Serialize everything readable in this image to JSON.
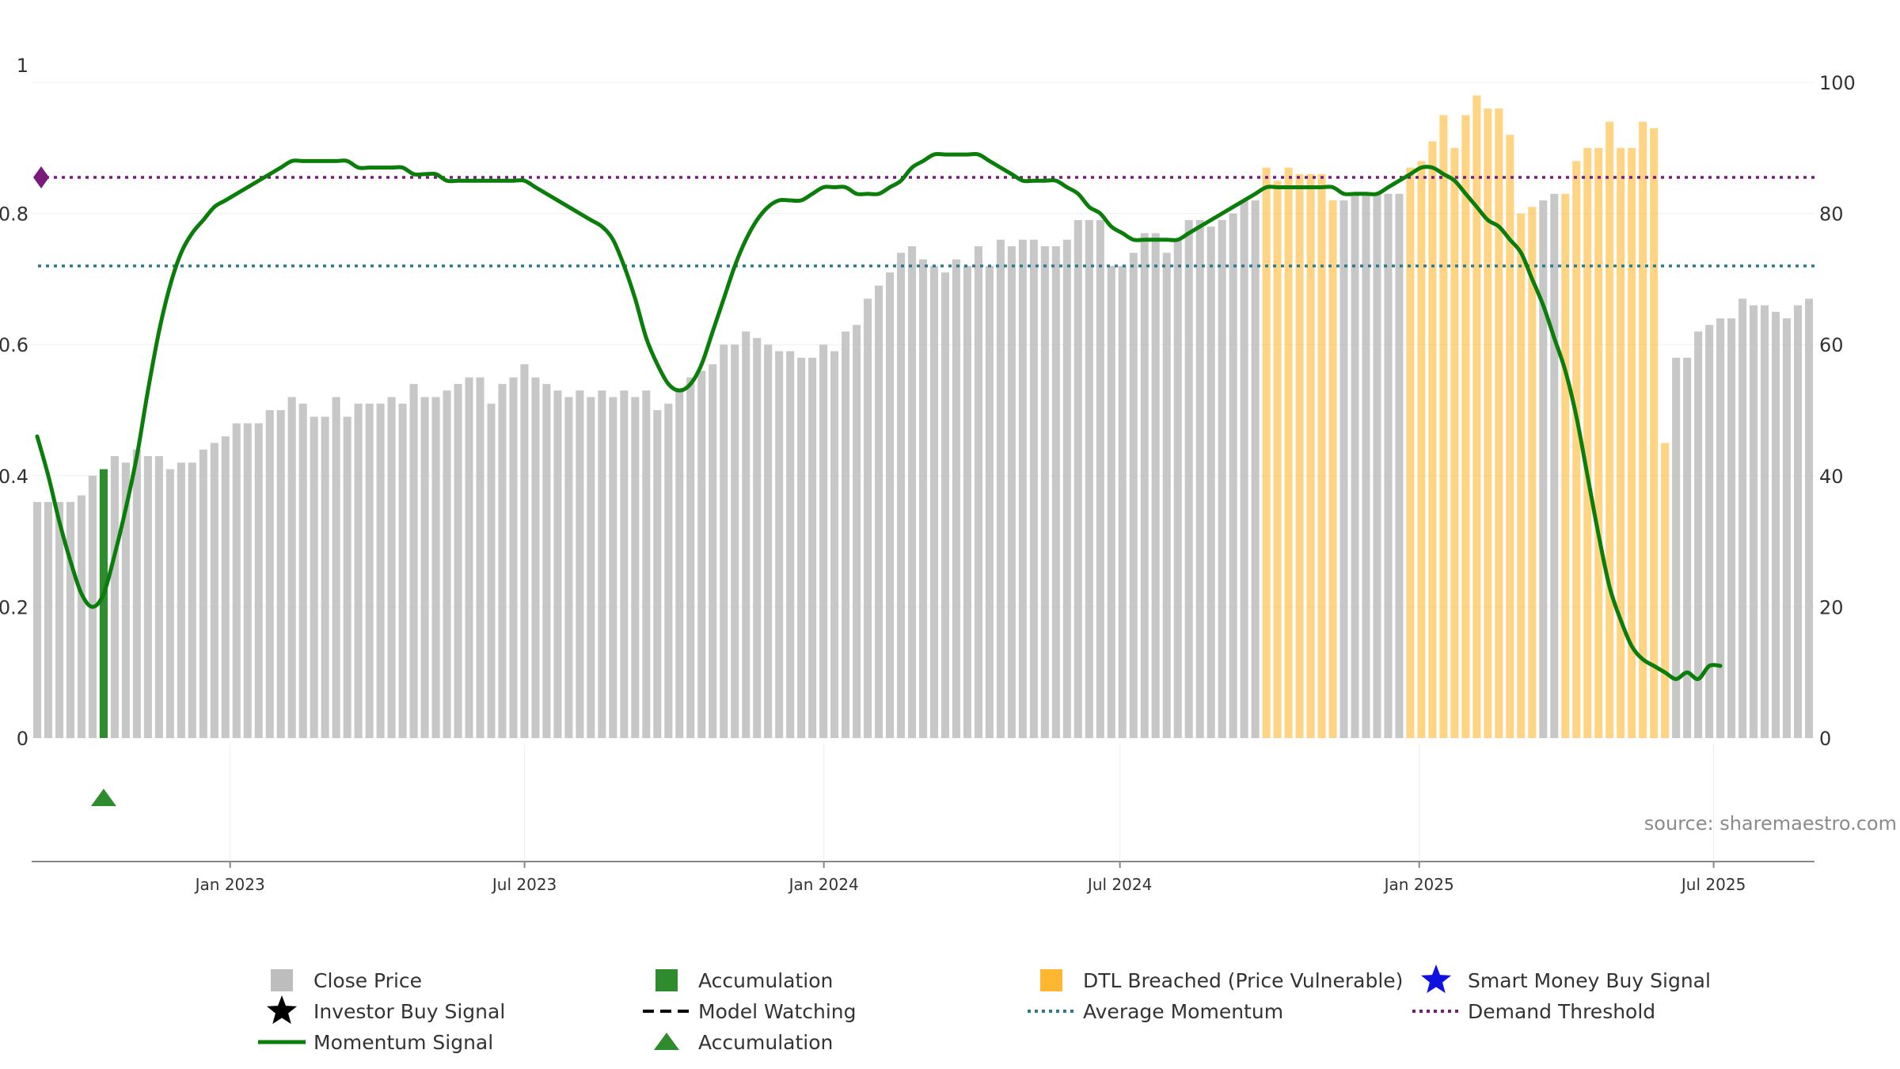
{
  "chart_data": {
    "type": "bar",
    "left_axis": {
      "ylim": [
        0,
        1
      ],
      "ticks": [
        "0",
        "0.2",
        "0.4",
        "0.6",
        "0.8",
        "1"
      ]
    },
    "right_axis": {
      "ylim": [
        0,
        100
      ],
      "ticks": [
        "0",
        "20",
        "40",
        "60",
        "80",
        "100"
      ]
    },
    "x_axis": {
      "start_month": [
        2022,
        9
      ],
      "end_month": [
        2025,
        9
      ],
      "ticks": [
        {
          "label": "Jan 2023",
          "date": "2023-01-01"
        },
        {
          "label": "Jul 2023",
          "date": "2023-07-01"
        },
        {
          "label": "Jan 2024",
          "date": "2024-01-01"
        },
        {
          "label": "Jul 2024",
          "date": "2024-07-01"
        },
        {
          "label": "Jan 2025",
          "date": "2025-01-01"
        },
        {
          "label": "Jul 2025",
          "date": "2025-07-01"
        }
      ]
    },
    "close_price": [
      36,
      36,
      36,
      36,
      37,
      40,
      41,
      43,
      42,
      44,
      43,
      43,
      41,
      42,
      42,
      44,
      45,
      46,
      48,
      48,
      48,
      50,
      50,
      52,
      51,
      49,
      49,
      52,
      49,
      51,
      51,
      51,
      52,
      51,
      54,
      52,
      52,
      53,
      54,
      55,
      55,
      51,
      54,
      55,
      57,
      55,
      54,
      53,
      52,
      53,
      52,
      53,
      52,
      53,
      52,
      53,
      50,
      51,
      53,
      55,
      56,
      57,
      60,
      60,
      62,
      61,
      60,
      59,
      59,
      58,
      58,
      60,
      59,
      62,
      63,
      67,
      69,
      71,
      74,
      75,
      73,
      72,
      71,
      73,
      72,
      75,
      72,
      76,
      75,
      76,
      76,
      75,
      75,
      76,
      79,
      79,
      79,
      72,
      72,
      74,
      77,
      77,
      74,
      76,
      79,
      79,
      78,
      79,
      80,
      82,
      82,
      87,
      85,
      87,
      86,
      86,
      86,
      82,
      82,
      83,
      83,
      83,
      83,
      83,
      87,
      88,
      91,
      95,
      90,
      95,
      98,
      96,
      96,
      92,
      80,
      81,
      82,
      83,
      83,
      88,
      90,
      90,
      94,
      90,
      90,
      94,
      93,
      45,
      58,
      58,
      62,
      63,
      64,
      64,
      67,
      66,
      66,
      65,
      64,
      66,
      67
    ],
    "accumulation_bar_index": 6,
    "accumulation_bar_value": 41,
    "dtl_breached_ranges": [
      [
        111,
        117
      ],
      [
        124,
        135
      ],
      [
        138,
        147
      ]
    ],
    "momentum_signal": [
      [
        0,
        46
      ],
      [
        1,
        40
      ],
      [
        2,
        33
      ],
      [
        3,
        27
      ],
      [
        4,
        22
      ],
      [
        5,
        20
      ],
      [
        6,
        22
      ],
      [
        7,
        28
      ],
      [
        8,
        35
      ],
      [
        9,
        43
      ],
      [
        10,
        53
      ],
      [
        11,
        62
      ],
      [
        12,
        69
      ],
      [
        13,
        74
      ],
      [
        14,
        77
      ],
      [
        15,
        79
      ],
      [
        16,
        81
      ],
      [
        17,
        82
      ],
      [
        18,
        83
      ],
      [
        19,
        84
      ],
      [
        20,
        85
      ],
      [
        21,
        86
      ],
      [
        22,
        87
      ],
      [
        23,
        88
      ],
      [
        24,
        88
      ],
      [
        25,
        88
      ],
      [
        26,
        88
      ],
      [
        27,
        88
      ],
      [
        28,
        88
      ],
      [
        29,
        87
      ],
      [
        30,
        87
      ],
      [
        31,
        87
      ],
      [
        32,
        87
      ],
      [
        33,
        87
      ],
      [
        34,
        86
      ],
      [
        35,
        86
      ],
      [
        36,
        86
      ],
      [
        37,
        85
      ],
      [
        38,
        85
      ],
      [
        39,
        85
      ],
      [
        40,
        85
      ],
      [
        41,
        85
      ],
      [
        42,
        85
      ],
      [
        43,
        85
      ],
      [
        44,
        85
      ],
      [
        45,
        84
      ],
      [
        46,
        83
      ],
      [
        47,
        82
      ],
      [
        48,
        81
      ],
      [
        49,
        80
      ],
      [
        50,
        79
      ],
      [
        51,
        78
      ],
      [
        52,
        76
      ],
      [
        53,
        72
      ],
      [
        54,
        67
      ],
      [
        55,
        61
      ],
      [
        56,
        57
      ],
      [
        57,
        54
      ],
      [
        58,
        53
      ],
      [
        59,
        54
      ],
      [
        60,
        57
      ],
      [
        61,
        62
      ],
      [
        62,
        67
      ],
      [
        63,
        72
      ],
      [
        64,
        76
      ],
      [
        65,
        79
      ],
      [
        66,
        81
      ],
      [
        67,
        82
      ],
      [
        68,
        82
      ],
      [
        69,
        82
      ],
      [
        70,
        83
      ],
      [
        71,
        84
      ],
      [
        72,
        84
      ],
      [
        73,
        84
      ],
      [
        74,
        83
      ],
      [
        75,
        83
      ],
      [
        76,
        83
      ],
      [
        77,
        84
      ],
      [
        78,
        85
      ],
      [
        79,
        87
      ],
      [
        80,
        88
      ],
      [
        81,
        89
      ],
      [
        82,
        89
      ],
      [
        83,
        89
      ],
      [
        84,
        89
      ],
      [
        85,
        89
      ],
      [
        86,
        88
      ],
      [
        87,
        87
      ],
      [
        88,
        86
      ],
      [
        89,
        85
      ],
      [
        90,
        85
      ],
      [
        91,
        85
      ],
      [
        92,
        85
      ],
      [
        93,
        84
      ],
      [
        94,
        83
      ],
      [
        95,
        81
      ],
      [
        96,
        80
      ],
      [
        97,
        78
      ],
      [
        98,
        77
      ],
      [
        99,
        76
      ],
      [
        100,
        76
      ],
      [
        101,
        76
      ],
      [
        102,
        76
      ],
      [
        103,
        76
      ],
      [
        104,
        77
      ],
      [
        105,
        78
      ],
      [
        106,
        79
      ],
      [
        107,
        80
      ],
      [
        108,
        81
      ],
      [
        109,
        82
      ],
      [
        110,
        83
      ],
      [
        111,
        84
      ],
      [
        112,
        84
      ],
      [
        113,
        84
      ],
      [
        114,
        84
      ],
      [
        115,
        84
      ],
      [
        116,
        84
      ],
      [
        117,
        84
      ],
      [
        118,
        83
      ],
      [
        119,
        83
      ],
      [
        120,
        83
      ],
      [
        121,
        83
      ],
      [
        122,
        84
      ],
      [
        123,
        85
      ],
      [
        124,
        86
      ],
      [
        125,
        87
      ],
      [
        126,
        87
      ],
      [
        127,
        86
      ],
      [
        128,
        85
      ],
      [
        129,
        83
      ],
      [
        130,
        81
      ],
      [
        131,
        79
      ],
      [
        132,
        78
      ],
      [
        133,
        76
      ],
      [
        134,
        74
      ],
      [
        135,
        70
      ],
      [
        136,
        66
      ],
      [
        137,
        61
      ],
      [
        138,
        56
      ],
      [
        139,
        49
      ],
      [
        140,
        40
      ],
      [
        141,
        31
      ],
      [
        142,
        23
      ],
      [
        143,
        18
      ],
      [
        144,
        14
      ],
      [
        145,
        12
      ],
      [
        146,
        11
      ],
      [
        147,
        10
      ],
      [
        148,
        9
      ],
      [
        149,
        10
      ],
      [
        150,
        9
      ],
      [
        151,
        11
      ],
      [
        152,
        11
      ]
    ],
    "average_momentum": 0.72,
    "demand_threshold": 0.855,
    "accumulation_marker_index": 6,
    "colors": {
      "close_price": "#bdbdbd",
      "accumulation": "#2e8b2e",
      "dtl_breached": "#ffb732",
      "momentum": "#0a7d0a",
      "average_momentum": "#2b7a8c",
      "demand_threshold": "#7a1a7a",
      "smart_money": "#1010e0"
    },
    "source_text": "source: sharemaestro.com",
    "legend": [
      {
        "label": "Close Price",
        "icon": "gray-square"
      },
      {
        "label": "Accumulation",
        "icon": "green-square"
      },
      {
        "label": "DTL Breached (Price Vulnerable)",
        "icon": "orange-square"
      },
      {
        "label": "Smart Money Buy Signal",
        "icon": "blue-star"
      },
      {
        "label": "Investor Buy Signal",
        "icon": "black-star"
      },
      {
        "label": "Model Watching",
        "icon": "black-dashed-line"
      },
      {
        "label": "Average Momentum",
        "icon": "teal-dotted-line"
      },
      {
        "label": "Demand Threshold",
        "icon": "purple-dotted-line"
      },
      {
        "label": "Momentum Signal",
        "icon": "green-line"
      },
      {
        "label": "Accumulation",
        "icon": "green-triangle"
      }
    ]
  }
}
